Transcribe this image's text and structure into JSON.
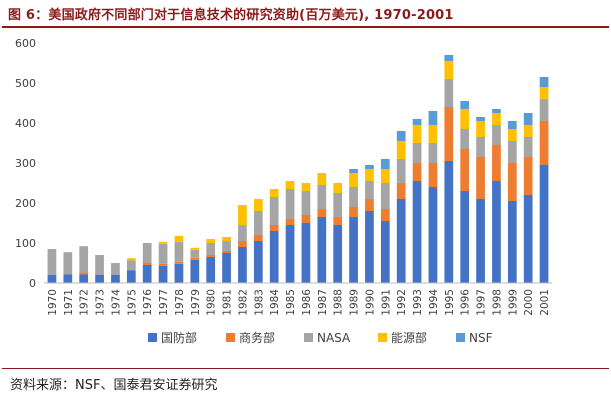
{
  "header": {
    "title": "图 6：美国政府不同部门对于信息技术的研究资助(百万美元), 1970-2001"
  },
  "footer": {
    "source": "资料来源：NSF、国泰君安证券研究"
  },
  "colors": {
    "国防部": "#4472c4",
    "商务部": "#ed7d31",
    "NASA": "#a5a5a5",
    "能源部": "#ffc000",
    "NSF": "#5b9bd5",
    "axis": "#bfbfbf",
    "text": "#404040"
  },
  "chart_data": {
    "type": "bar",
    "stacked": true,
    "title": "美国政府不同部门对于信息技术的研究资助(百万美元), 1970-2001",
    "xlabel": "",
    "ylabel": "",
    "ylim": [
      0,
      600
    ],
    "yticks": [
      0,
      100,
      200,
      300,
      400,
      500,
      600
    ],
    "grid": false,
    "legend_position": "bottom",
    "categories": [
      "1970",
      "1971",
      "1972",
      "1973",
      "1974",
      "1975",
      "1976",
      "1977",
      "1978",
      "1979",
      "1980",
      "1981",
      "1982",
      "1983",
      "1984",
      "1985",
      "1986",
      "1987",
      "1988",
      "1989",
      "1990",
      "1991",
      "1992",
      "1993",
      "1994",
      "1995",
      "1996",
      "1997",
      "1998",
      "1999",
      "2000",
      "2001"
    ],
    "series": [
      {
        "name": "国防部",
        "values": [
          20,
          22,
          22,
          20,
          20,
          32,
          45,
          43,
          48,
          58,
          65,
          75,
          90,
          105,
          130,
          145,
          150,
          165,
          145,
          165,
          180,
          155,
          210,
          255,
          240,
          305,
          230,
          210,
          255,
          205,
          220,
          295
        ]
      },
      {
        "name": "商务部",
        "values": [
          0,
          0,
          5,
          0,
          0,
          0,
          5,
          5,
          5,
          5,
          5,
          5,
          15,
          15,
          15,
          15,
          20,
          20,
          20,
          25,
          30,
          30,
          40,
          45,
          60,
          135,
          105,
          105,
          90,
          95,
          95,
          110
        ]
      },
      {
        "name": "NASA",
        "values": [
          65,
          55,
          65,
          50,
          30,
          25,
          50,
          50,
          50,
          20,
          30,
          25,
          40,
          60,
          70,
          75,
          60,
          60,
          60,
          50,
          45,
          65,
          60,
          50,
          50,
          70,
          50,
          50,
          50,
          55,
          50,
          55
        ]
      },
      {
        "name": "能源部",
        "values": [
          0,
          0,
          0,
          0,
          0,
          5,
          0,
          5,
          15,
          5,
          10,
          10,
          50,
          30,
          20,
          20,
          20,
          30,
          25,
          35,
          30,
          35,
          45,
          45,
          45,
          45,
          50,
          40,
          30,
          30,
          30,
          30
        ]
      },
      {
        "name": "NSF",
        "values": [
          0,
          0,
          0,
          0,
          0,
          0,
          0,
          0,
          0,
          0,
          0,
          0,
          0,
          0,
          0,
          0,
          0,
          0,
          0,
          10,
          10,
          25,
          25,
          15,
          35,
          15,
          20,
          10,
          10,
          20,
          30,
          25
        ]
      }
    ]
  }
}
